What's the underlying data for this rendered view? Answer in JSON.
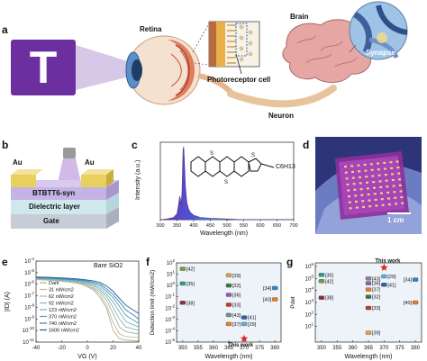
{
  "panels": {
    "a": {
      "letter": "a",
      "letter_T": "T",
      "retina": "Retina",
      "brain": "Brain",
      "synapse": "Synapse",
      "photoreceptor": "Photoreceptor cell",
      "neuron": "Neuron"
    },
    "b": {
      "letter": "b",
      "au_left": "Au",
      "au_right": "Au",
      "semiconductor": "BTBTT6-syn",
      "dielectric": "Dielectric layer",
      "gate": "Gate"
    },
    "c": {
      "letter": "c",
      "ylabel": "Intensity (a.u.)",
      "xlabel": "Wavelength (nm)",
      "substituent": "C6H13"
    },
    "d": {
      "letter": "d",
      "scalebar": "1 cm"
    },
    "e": {
      "letter": "e",
      "annotation": "Bare SiO2"
    },
    "f": {
      "letter": "f",
      "this_work": "This work"
    },
    "g": {
      "letter": "g",
      "this_work": "This work"
    }
  },
  "chart_data": [
    {
      "id": "c",
      "type": "area",
      "xlabel": "Wavelength (nm)",
      "ylabel": "Intensity (a.u.)",
      "xlim": [
        300,
        700
      ],
      "xticks": [
        300,
        350,
        400,
        450,
        500,
        550,
        600,
        650,
        700
      ],
      "ylim": [
        0,
        1.05
      ],
      "series": [
        {
          "x": [
            300,
            320,
            340,
            350,
            355,
            358,
            360,
            362,
            365,
            368,
            370,
            372,
            375,
            378,
            380,
            385,
            390,
            400,
            420,
            450,
            500,
            550,
            600,
            650,
            700
          ],
          "y": [
            0,
            0.01,
            0.03,
            0.08,
            0.22,
            0.32,
            0.28,
            0.2,
            0.36,
            0.94,
            0.99,
            0.82,
            0.46,
            0.3,
            0.22,
            0.14,
            0.1,
            0.06,
            0.03,
            0.02,
            0.01,
            0.0,
            0.0,
            0.0,
            0.0
          ]
        }
      ]
    },
    {
      "id": "e",
      "type": "line",
      "xlabel": "VG (V)",
      "ylabel": "|ID| (A)",
      "xlim": [
        -40,
        40
      ],
      "xticks": [
        -40,
        -20,
        0,
        20,
        40
      ],
      "yscale": "log",
      "ylim": [
        1e-11,
        0.0001
      ],
      "ytick_labels": [
        "10^-4",
        "10^-5",
        "10^-6",
        "10^-7",
        "10^-8",
        "10^-9",
        "10^-10",
        "10^-11"
      ],
      "legend_position": "left",
      "series": [
        {
          "name": "Dark",
          "color": "#b6ad90",
          "x": [
            -40,
            -30,
            -20,
            -10,
            -5,
            0,
            5,
            10,
            15,
            20,
            25,
            30,
            40
          ],
          "y": [
            2.5e-06,
            2.2e-06,
            1.8e-06,
            1.3e-06,
            1e-06,
            6e-07,
            3e-07,
            7e-08,
            8e-09,
            1e-10,
            2e-11,
            1.5e-11,
            1.2e-11
          ]
        },
        {
          "name": "31 nW/cm2",
          "color": "#c9b79b",
          "x": [
            -40,
            -30,
            -20,
            -10,
            -5,
            0,
            5,
            10,
            15,
            20,
            25,
            30,
            40
          ],
          "y": [
            2.6e-06,
            2.3e-06,
            1.9e-06,
            1.4e-06,
            1.1e-06,
            7e-07,
            4e-07,
            1.2e-07,
            1.5e-08,
            5e-10,
            5e-11,
            3e-11,
            2.5e-11
          ]
        },
        {
          "name": "62 nW/cm2",
          "color": "#9fb3a9",
          "x": [
            -40,
            -30,
            -20,
            -10,
            -5,
            0,
            5,
            10,
            15,
            20,
            25,
            30,
            40
          ],
          "y": [
            2.8e-06,
            2.5e-06,
            2.1e-06,
            1.6e-06,
            1.3e-06,
            9e-07,
            5e-07,
            2e-07,
            4e-08,
            3e-09,
            2e-10,
            8e-11,
            5e-11
          ]
        },
        {
          "name": "92 nW/cm2",
          "color": "#8ab7b1",
          "x": [
            -40,
            -30,
            -20,
            -10,
            -5,
            0,
            5,
            10,
            15,
            20,
            25,
            30,
            40
          ],
          "y": [
            3e-06,
            2.7e-06,
            2.3e-06,
            1.8e-06,
            1.5e-06,
            1.1e-06,
            7e-07,
            3e-07,
            8e-08,
            1e-08,
            1e-09,
            2e-10,
            1e-10
          ]
        },
        {
          "name": "123 nW/cm2",
          "color": "#6fb5b8",
          "x": [
            -40,
            -30,
            -20,
            -10,
            -5,
            0,
            5,
            10,
            15,
            20,
            25,
            30,
            40
          ],
          "y": [
            3.2e-06,
            2.9e-06,
            2.5e-06,
            2e-06,
            1.7e-06,
            1.3e-06,
            9e-07,
            4.5e-07,
            1.4e-07,
            3e-08,
            4e-09,
            6e-10,
            2e-10
          ]
        },
        {
          "name": "370 nW/cm2",
          "color": "#4f9fb9",
          "x": [
            -40,
            -30,
            -20,
            -10,
            -5,
            0,
            5,
            10,
            15,
            20,
            25,
            30,
            40
          ],
          "y": [
            3.5e-06,
            3.2e-06,
            2.8e-06,
            2.3e-06,
            2e-06,
            1.6e-06,
            1.2e-06,
            7e-07,
            2.5e-07,
            7e-08,
            1.2e-08,
            2e-09,
            4e-10
          ]
        },
        {
          "name": "740 nW/cm2",
          "color": "#3b83b4",
          "x": [
            -40,
            -30,
            -20,
            -10,
            -5,
            0,
            5,
            10,
            15,
            20,
            25,
            30,
            40
          ],
          "y": [
            3.8e-06,
            3.5e-06,
            3.1e-06,
            2.6e-06,
            2.3e-06,
            1.9e-06,
            1.5e-06,
            1e-06,
            4e-07,
            1.3e-07,
            3e-08,
            6e-09,
            1e-09
          ]
        },
        {
          "name": "1600 nW/cm2",
          "color": "#1f5a9f",
          "x": [
            -40,
            -30,
            -20,
            -10,
            -5,
            0,
            5,
            10,
            15,
            20,
            25,
            30,
            40
          ],
          "y": [
            4.2e-06,
            3.9e-06,
            3.5e-06,
            3e-06,
            2.7e-06,
            2.3e-06,
            1.9e-06,
            1.4e-06,
            7e-07,
            2.5e-07,
            6e-08,
            1.5e-08,
            3e-09
          ]
        }
      ]
    },
    {
      "id": "f",
      "type": "scatter",
      "xlabel": "Wavelength (nm)",
      "ylabel": "Detection limit (mW/cm2)",
      "xlim": [
        348,
        382
      ],
      "xticks": [
        350,
        355,
        360,
        365,
        370,
        375,
        380
      ],
      "yscale": "log",
      "ylim": [
        1e-05,
        100.0
      ],
      "ytick_labels": [
        "10^2",
        "10^1",
        "10^0",
        "10^-1",
        "10^-2",
        "10^-3",
        "10^-4",
        "10^-5"
      ],
      "points": [
        {
          "label": "[42]",
          "x": 350,
          "y": 30,
          "color": "#6f9d3f"
        },
        {
          "label": "[35]",
          "x": 350,
          "y": 1.5,
          "color": "#2a9d8f"
        },
        {
          "label": "[38]",
          "x": 350,
          "y": 0.03,
          "color": "#8b2f3a"
        },
        {
          "label": "[39]",
          "x": 365,
          "y": 8,
          "color": "#d9a441"
        },
        {
          "label": "[32]",
          "x": 365,
          "y": 1.0,
          "color": "#3c7a3c"
        },
        {
          "label": "[36]",
          "x": 365,
          "y": 0.15,
          "color": "#9b59b6"
        },
        {
          "label": "[33]",
          "x": 365,
          "y": 0.02,
          "color": "#c0392b"
        },
        {
          "label": "[43]",
          "x": 365,
          "y": 0.0025,
          "color": "#7f8c8d"
        },
        {
          "label": "[37]",
          "x": 365,
          "y": 0.0004,
          "color": "#e67e22"
        },
        {
          "label": "[41]",
          "x": 370,
          "y": 0.0015,
          "color": "#2f5fa8"
        },
        {
          "label": "[29]",
          "x": 370,
          "y": 0.0004,
          "color": "#5dade2"
        },
        {
          "label": "[34]",
          "x": 380,
          "y": 0.6,
          "color": "#2e86c1"
        },
        {
          "label": "[40]",
          "x": 380,
          "y": 0.06,
          "color": "#e67e22"
        },
        {
          "label": "This work",
          "x": 370,
          "y": 2e-05,
          "color": "#e02424"
        }
      ]
    },
    {
      "id": "g",
      "type": "scatter",
      "xlabel": "Wavelength (nm)",
      "ylabel": "Pdet",
      "xlim": [
        348,
        382
      ],
      "xticks": [
        350,
        355,
        360,
        365,
        370,
        375,
        380
      ],
      "yscale": "log",
      "ylim": [
        0.5,
        2000000.0
      ],
      "ytick_labels": [
        "10^6",
        "10^5",
        "10^4",
        "10^3",
        "10^2",
        "10^1"
      ],
      "points": [
        {
          "label": "[35]",
          "x": 350,
          "y": 200000,
          "color": "#2a9d8f"
        },
        {
          "label": "[42]",
          "x": 350,
          "y": 60000,
          "color": "#6f9d3f"
        },
        {
          "label": "[38]",
          "x": 350,
          "y": 2500,
          "color": "#8b2f3a"
        },
        {
          "label": "[43]",
          "x": 365,
          "y": 100000,
          "color": "#7f8c8d"
        },
        {
          "label": "[36]",
          "x": 365,
          "y": 40000,
          "color": "#9b59b6"
        },
        {
          "label": "[37]",
          "x": 365,
          "y": 12000,
          "color": "#e67e22"
        },
        {
          "label": "[32]",
          "x": 365,
          "y": 3000,
          "color": "#3c7a3c"
        },
        {
          "label": "[33]",
          "x": 365,
          "y": 350,
          "color": "#c0392b"
        },
        {
          "label": "[39]",
          "x": 365,
          "y": 3,
          "color": "#d9a441"
        },
        {
          "label": "[29]",
          "x": 370,
          "y": 150000,
          "color": "#5dade2"
        },
        {
          "label": "[41]",
          "x": 370,
          "y": 30000,
          "color": "#2f5fa8"
        },
        {
          "label": "This work",
          "x": 370,
          "y": 800000,
          "color": "#e02424"
        },
        {
          "label": "[34]",
          "x": 380,
          "y": 80000,
          "color": "#2e86c1"
        },
        {
          "label": "[40]",
          "x": 380,
          "y": 1000,
          "color": "#e67e22"
        }
      ]
    }
  ]
}
